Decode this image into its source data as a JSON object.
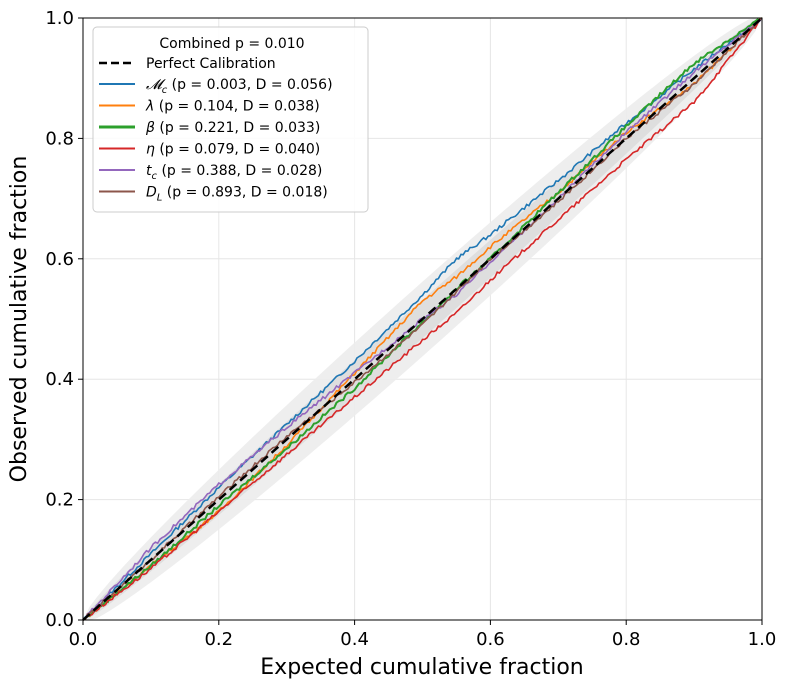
{
  "chart_data": {
    "type": "line",
    "title": "",
    "xlabel": "Expected cumulative fraction",
    "ylabel": "Observed cumulative fraction",
    "xlim": [
      0,
      1
    ],
    "ylim": [
      0,
      1
    ],
    "xticks": [
      "0.0",
      "0.2",
      "0.4",
      "0.6",
      "0.8",
      "1.0"
    ],
    "yticks": [
      "0.0",
      "0.2",
      "0.4",
      "0.6",
      "0.8",
      "1.0"
    ],
    "grid": true,
    "legend_position": "top-left",
    "legend_title": "Combined p = 0.010",
    "reference_line": {
      "name": "Perfect Calibration",
      "color": "#000000",
      "style": "dashed"
    },
    "x": [
      0,
      0.1,
      0.2,
      0.3,
      0.4,
      0.5,
      0.55,
      0.6,
      0.7,
      0.8,
      0.9,
      1.0
    ],
    "series": [
      {
        "name": "𝓜c (p = 0.003, D = 0.056)",
        "color": "#1f77b4",
        "values": [
          0,
          0.11,
          0.22,
          0.325,
          0.43,
          0.54,
          0.6,
          0.64,
          0.73,
          0.825,
          0.915,
          1.0
        ]
      },
      {
        "name": "λ (p = 0.104, D = 0.038)",
        "color": "#ff7f0e",
        "values": [
          0,
          0.09,
          0.18,
          0.29,
          0.41,
          0.53,
          0.57,
          0.62,
          0.71,
          0.81,
          0.89,
          1.0
        ]
      },
      {
        "name": "β (p = 0.221, D = 0.033)",
        "color": "#2ca02c",
        "values": [
          0,
          0.09,
          0.19,
          0.285,
          0.385,
          0.495,
          0.55,
          0.6,
          0.71,
          0.82,
          0.925,
          1.0
        ]
      },
      {
        "name": "η (p = 0.079, D = 0.040)",
        "color": "#d62728",
        "values": [
          0,
          0.085,
          0.18,
          0.275,
          0.37,
          0.465,
          0.51,
          0.565,
          0.665,
          0.765,
          0.86,
          1.0
        ]
      },
      {
        "name": "tc (p = 0.388, D = 0.028)",
        "color": "#9467bd",
        "values": [
          0,
          0.12,
          0.225,
          0.32,
          0.41,
          0.5,
          0.54,
          0.595,
          0.7,
          0.81,
          0.91,
          1.0
        ]
      },
      {
        "name": "DL (p = 0.893, D = 0.018)",
        "color": "#8c564b",
        "values": [
          0,
          0.1,
          0.205,
          0.305,
          0.395,
          0.49,
          0.545,
          0.6,
          0.695,
          0.8,
          0.89,
          1.0
        ]
      }
    ],
    "legend_labels": [
      {
        "sym": "𝓜",
        "sub": "c",
        "rest": " (p = 0.003, D = 0.056)"
      },
      {
        "sym": "λ",
        "sub": "",
        "rest": " (p = 0.104, D = 0.038)"
      },
      {
        "sym": "β",
        "sub": "",
        "rest": " (p = 0.221, D = 0.033)"
      },
      {
        "sym": "η",
        "sub": "",
        "rest": " (p = 0.079, D = 0.040)"
      },
      {
        "sym": "t",
        "sub": "c",
        "rest": " (p = 0.388, D = 0.028)"
      },
      {
        "sym": "D",
        "sub": "L",
        "rest": " (p = 0.893, D = 0.018)"
      }
    ]
  }
}
